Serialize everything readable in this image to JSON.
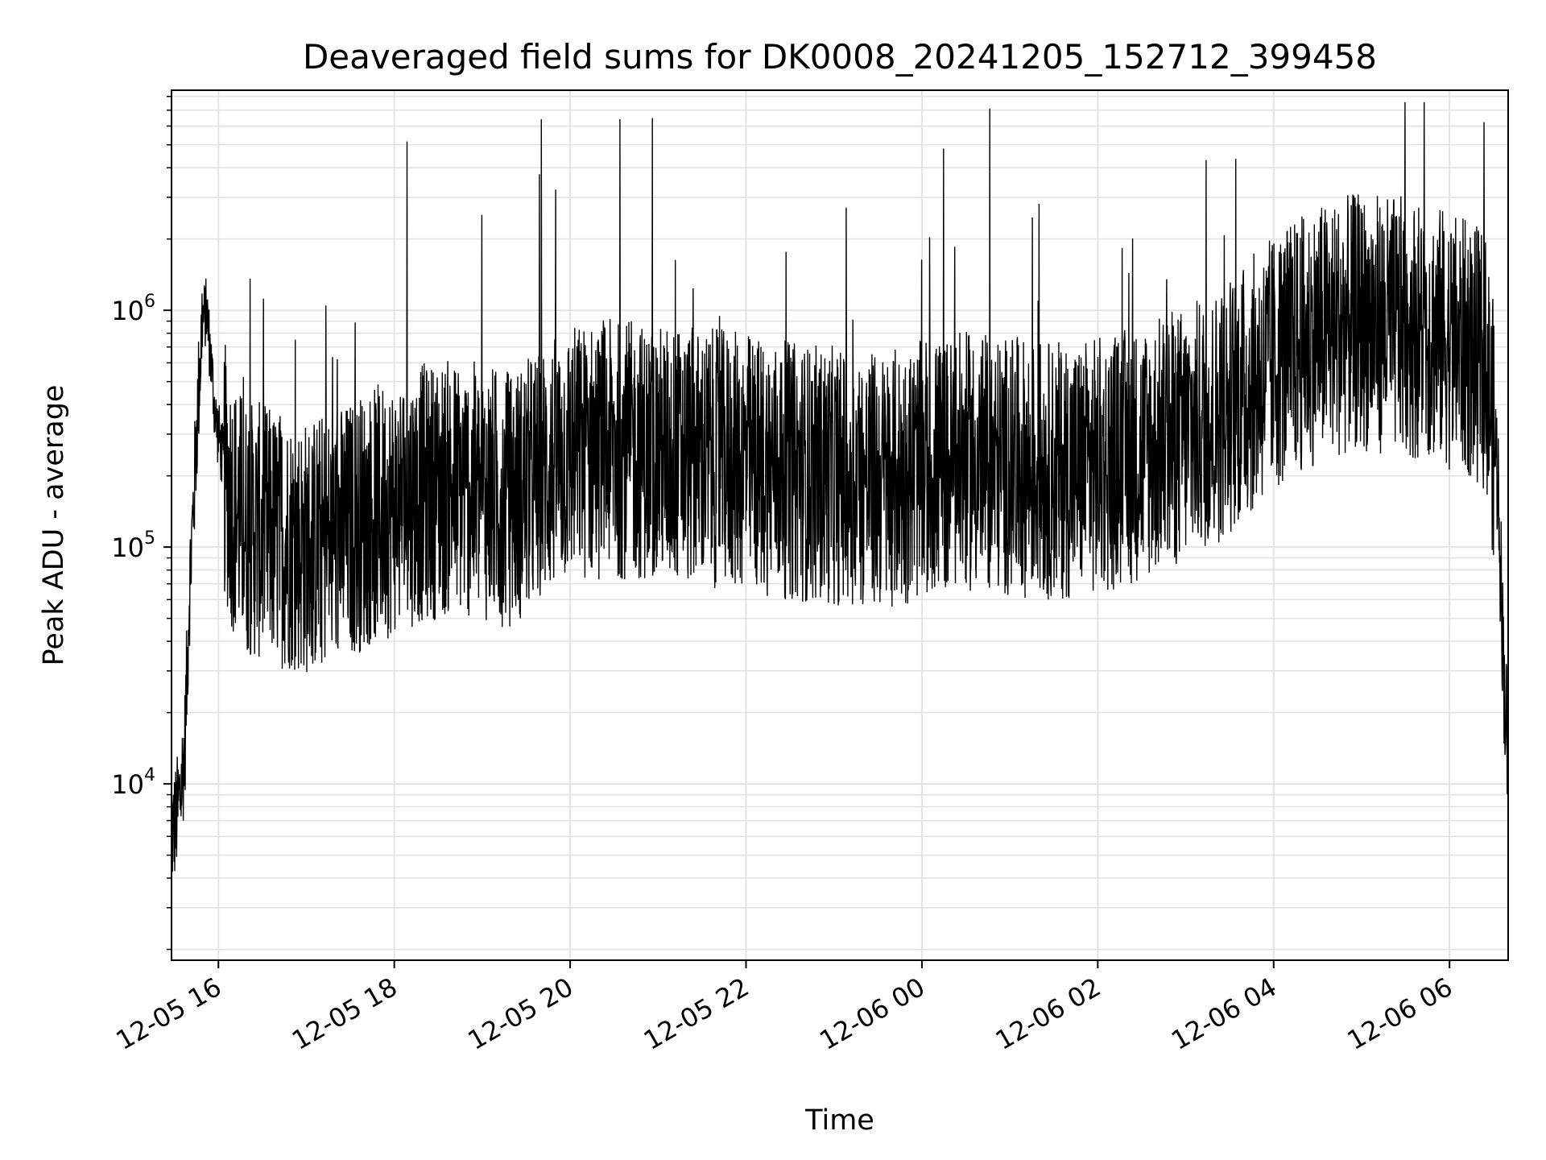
{
  "chart_data": {
    "type": "line",
    "title": "Deaveraged field sums for DK0008_20241205_152712_399458",
    "xlabel": "Time",
    "ylabel": "Peak ADU - average",
    "y_scale": "log",
    "ylim": [
      1800,
      8500000
    ],
    "xlim": [
      "2024-12-05 15:28",
      "2024-12-06 06:40"
    ],
    "grid": true,
    "legend": "none",
    "line_color": "#000000",
    "grid_color": "#e3e3e3",
    "y_ticks": [
      {
        "value": 10000,
        "base": "10",
        "exp": "4"
      },
      {
        "value": 100000,
        "base": "10",
        "exp": "5"
      },
      {
        "value": 1000000,
        "base": "10",
        "exp": "6"
      }
    ],
    "x_ticks": [
      {
        "value": "2024-12-05 16:00",
        "label": "12-05 16"
      },
      {
        "value": "2024-12-05 18:00",
        "label": "12-05 18"
      },
      {
        "value": "2024-12-05 20:00",
        "label": "12-05 20"
      },
      {
        "value": "2024-12-05 22:00",
        "label": "12-05 22"
      },
      {
        "value": "2024-12-06 00:00",
        "label": "12-06 00"
      },
      {
        "value": "2024-12-06 02:00",
        "label": "12-06 02"
      },
      {
        "value": "2024-12-06 04:00",
        "label": "12-06 04"
      },
      {
        "value": "2024-12-06 06:00",
        "label": "12-06 06"
      }
    ],
    "series": [
      {
        "x": [
          "2024-12-05 15:28",
          "2024-12-05 15:31",
          "2024-12-05 15:34",
          "2024-12-05 15:37",
          "2024-12-05 15:40",
          "2024-12-05 15:43",
          "2024-12-05 15:46",
          "2024-12-05 15:49",
          "2024-12-05 15:52",
          "2024-12-05 15:55",
          "2024-12-05 15:58",
          "2024-12-05 16:00",
          "2024-12-05 16:05",
          "2024-12-05 16:10",
          "2024-12-05 16:20",
          "2024-12-05 16:40",
          "2024-12-05 17:00",
          "2024-12-05 17:20",
          "2024-12-05 17:40",
          "2024-12-05 18:00",
          "2024-12-05 18:20",
          "2024-12-05 18:40",
          "2024-12-05 19:00",
          "2024-12-05 19:20",
          "2024-12-05 19:40",
          "2024-12-05 20:00",
          "2024-12-05 20:30",
          "2024-12-05 21:00",
          "2024-12-05 21:30",
          "2024-12-05 22:00",
          "2024-12-05 22:30",
          "2024-12-05 23:00",
          "2024-12-05 23:30",
          "2024-12-06 00:00",
          "2024-12-06 00:30",
          "2024-12-06 01:00",
          "2024-12-06 01:30",
          "2024-12-06 02:00",
          "2024-12-06 02:30",
          "2024-12-06 03:00",
          "2024-12-06 03:20",
          "2024-12-06 03:40",
          "2024-12-06 04:00",
          "2024-12-06 04:30",
          "2024-12-06 05:00",
          "2024-12-06 05:30",
          "2024-12-06 05:50",
          "2024-12-06 06:10",
          "2024-12-06 06:25",
          "2024-12-06 06:33",
          "2024-12-06 06:37",
          "2024-12-06 06:40"
        ],
        "values": [
          6000,
          7000,
          9000,
          14000,
          60000,
          150000,
          400000,
          900000,
          1000000,
          600000,
          350000,
          300000,
          200000,
          150000,
          120000,
          110000,
          100000,
          110000,
          130000,
          150000,
          170000,
          180000,
          170000,
          160000,
          200000,
          250000,
          260000,
          250000,
          240000,
          230000,
          210000,
          200000,
          190000,
          210000,
          230000,
          220000,
          210000,
          220000,
          250000,
          300000,
          350000,
          450000,
          600000,
          800000,
          900000,
          850000,
          800000,
          700000,
          600000,
          200000,
          30000,
          12000
        ]
      }
    ]
  }
}
